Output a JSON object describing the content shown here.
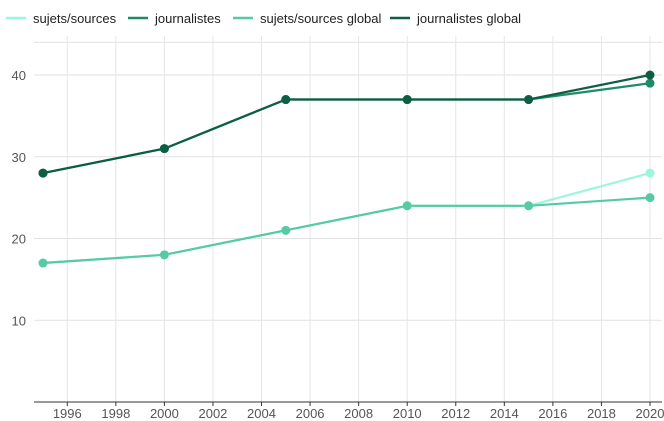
{
  "chart_data": {
    "type": "line",
    "title": "",
    "xlabel": "",
    "ylabel": "",
    "x": [
      1995,
      2000,
      2005,
      2010,
      2015,
      2020
    ],
    "xlim": [
      1995,
      2020
    ],
    "ylim": [
      0,
      44
    ],
    "x_ticks": [
      "1996",
      "1998",
      "2000",
      "2002",
      "2004",
      "2006",
      "2008",
      "2010",
      "2012",
      "2014",
      "2016",
      "2018",
      "2020"
    ],
    "y_ticks": [
      "10",
      "20",
      "30",
      "40"
    ],
    "grid": true,
    "legend_position": "top-left",
    "series": [
      {
        "name": "sujets/sources",
        "color": "#9ef5dd",
        "values": [
          17,
          18,
          21,
          24,
          24,
          28
        ]
      },
      {
        "name": "journalistes",
        "color": "#1f8a68",
        "values": [
          28,
          31,
          37,
          37,
          37,
          39
        ]
      },
      {
        "name": "sujets/sources global",
        "color": "#57c9a4",
        "values": [
          17,
          18,
          21,
          24,
          24,
          25
        ]
      },
      {
        "name": "journalistes global",
        "color": "#0e5e42",
        "values": [
          28,
          31,
          37,
          37,
          37,
          40
        ]
      }
    ]
  }
}
